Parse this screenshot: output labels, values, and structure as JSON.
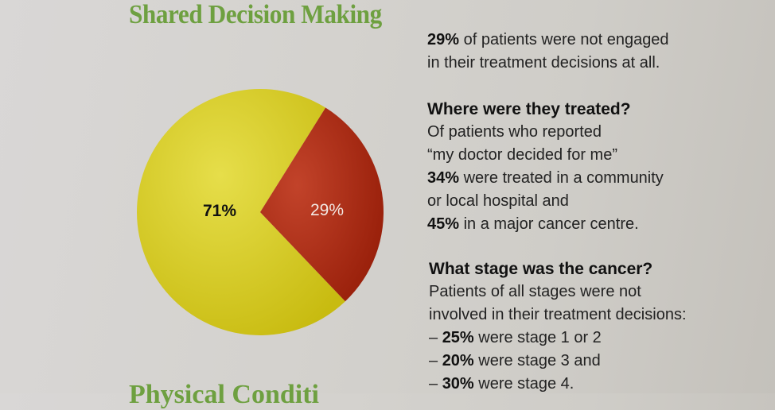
{
  "title": "Shared Decision Making",
  "next_title": "Physical Conditi",
  "chart_data": {
    "type": "pie",
    "title": "",
    "slices": [
      {
        "label": "71%",
        "value": 71,
        "color": "#d8cd2c"
      },
      {
        "label": "29%",
        "value": 29,
        "color": "#a82a12"
      }
    ]
  },
  "text": {
    "intro": {
      "bold": "29%",
      "rest1": " of patients were not engaged",
      "rest2": "in their treatment decisions at all."
    },
    "where": {
      "heading": "Where were they treated?",
      "l1": "Of patients who reported",
      "l2": "“my doctor decided for me”",
      "l3b": "34%",
      "l3": " were treated in a community",
      "l4": "or local hospital and",
      "l5b": "45%",
      "l5": " in a major cancer centre."
    },
    "stage": {
      "heading": "What stage was the cancer?",
      "l1": "Patients of all stages were not",
      "l2": "involved in their treatment decisions:",
      "items": [
        {
          "dash": "– ",
          "bold": "25%",
          "rest": " were stage 1 or 2"
        },
        {
          "dash": "– ",
          "bold": "20%",
          "rest": " were stage 3 and"
        },
        {
          "dash": "– ",
          "bold": "30%",
          "rest": " were stage 4."
        }
      ]
    }
  }
}
